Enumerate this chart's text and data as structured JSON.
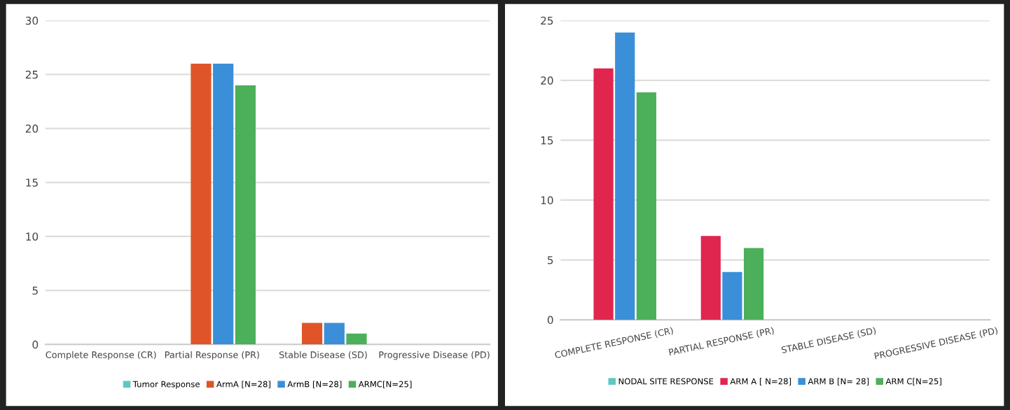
{
  "chart_data": [
    {
      "type": "bar",
      "categories": [
        "Complete Response (CR)",
        "Partial Response (PR)",
        "Stable Disease (SD)",
        "Progressive Disease (PD)"
      ],
      "ylim": [
        0,
        30
      ],
      "yticks": [
        0,
        5,
        10,
        15,
        20,
        25,
        30
      ],
      "grid": "y",
      "legend": "bottom",
      "series": [
        {
          "name": "Tumor Response",
          "color": "#5ec8c0",
          "values": [
            null,
            null,
            null,
            null
          ]
        },
        {
          "name": "ArmA [N=28]",
          "color": "#e0542a",
          "values": [
            0,
            26,
            2,
            0
          ]
        },
        {
          "name": "ArmB [N=28]",
          "color": "#3a8fd8",
          "values": [
            0,
            26,
            2,
            0
          ]
        },
        {
          "name": "ARMC[N=25]",
          "color": "#4caf5a",
          "values": [
            0,
            24,
            1,
            0
          ]
        }
      ]
    },
    {
      "type": "bar",
      "categories": [
        "COMPLETE RESPONSE (CR)",
        "PARTIAL RESPONSE (PR)",
        "STABLE DISEASE (SD)",
        "PROGRESSIVE DISEASE (PD)"
      ],
      "ylim": [
        0,
        25
      ],
      "yticks": [
        0,
        5,
        10,
        15,
        20,
        25
      ],
      "grid": "y",
      "legend": "bottom",
      "series": [
        {
          "name": "NODAL SITE RESPONSE",
          "color": "#5ec8c0",
          "values": [
            null,
            null,
            null,
            null
          ]
        },
        {
          "name": "ARM A [ N=28]",
          "color": "#e0264f",
          "values": [
            21,
            7,
            0,
            0
          ]
        },
        {
          "name": "ARM B [N= 28]",
          "color": "#3a8fd8",
          "values": [
            24,
            4,
            0,
            0
          ]
        },
        {
          "name": "ARM C[N=25]",
          "color": "#4caf5a",
          "values": [
            19,
            6,
            0,
            0
          ]
        }
      ]
    }
  ]
}
